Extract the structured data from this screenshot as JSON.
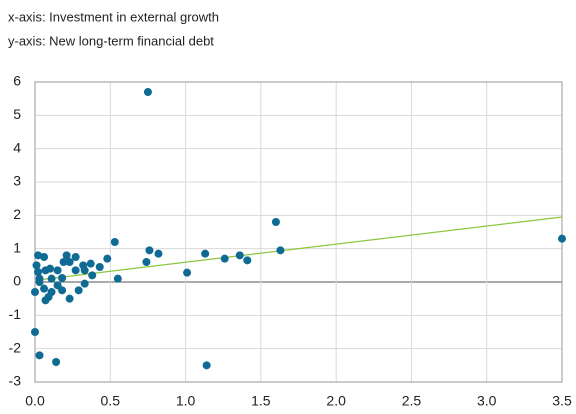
{
  "chart_data": {
    "type": "scatter",
    "x_label": "x-axis: Investment in external growth",
    "y_label": "y-axis: New long-term financial debt",
    "series": [
      {
        "color": "#0f6a94",
        "x": [
          0.75,
          1.6,
          3.5,
          0.53,
          0.76,
          0.82,
          0.74,
          1.13,
          1.01,
          1.26,
          1.36,
          1.41,
          1.63,
          0.55,
          1.14,
          0,
          0.03,
          0.14,
          0.02,
          0.06,
          0.01,
          0.02,
          0,
          0.03,
          0.07,
          0.1,
          0.11,
          0.15,
          0.18,
          0.21,
          0.23,
          0.19,
          0.27,
          0.32,
          0.37,
          0.33,
          0.27,
          0.38,
          0.43,
          0.48,
          0.23,
          0.29,
          0.33,
          0.09,
          0.07,
          0.11,
          0.15,
          0.18,
          0.06,
          0.03
        ],
        "values": [
          5.7,
          1.8,
          1.3,
          1.2,
          0.95,
          0.85,
          0.6,
          0.85,
          0.28,
          0.7,
          0.8,
          0.65,
          0.95,
          0.1,
          -2.5,
          -1.5,
          -2.2,
          -2.4,
          0.8,
          0.75,
          0.5,
          0.3,
          -0.3,
          0,
          0.35,
          0.4,
          0.1,
          0.35,
          0.12,
          0.8,
          0.6,
          0.6,
          0.75,
          0.5,
          0.55,
          0.35,
          0.35,
          0.2,
          0.45,
          0.7,
          -0.5,
          -0.25,
          -0.05,
          -0.45,
          -0.55,
          -0.3,
          -0.1,
          -0.25,
          -0.2,
          0.1
        ]
      }
    ],
    "trend_line": {
      "color": "#8cc63f",
      "x": [
        0,
        3.5
      ],
      "values": [
        0.05,
        1.95
      ]
    },
    "xlim": [
      0,
      3.5
    ],
    "xticks": [
      {
        "value": 0,
        "label": "0.0"
      },
      0.5,
      {
        "value": 1,
        "label": "1.0"
      },
      1.5,
      {
        "value": 2,
        "label": "2.0"
      },
      2.5,
      {
        "value": 3,
        "label": "3.0"
      },
      3.5
    ],
    "ylim": [
      -3,
      6
    ],
    "yticks": [
      -3,
      -2,
      -1,
      0,
      1,
      2,
      3,
      4,
      5,
      6
    ],
    "grid": true
  }
}
